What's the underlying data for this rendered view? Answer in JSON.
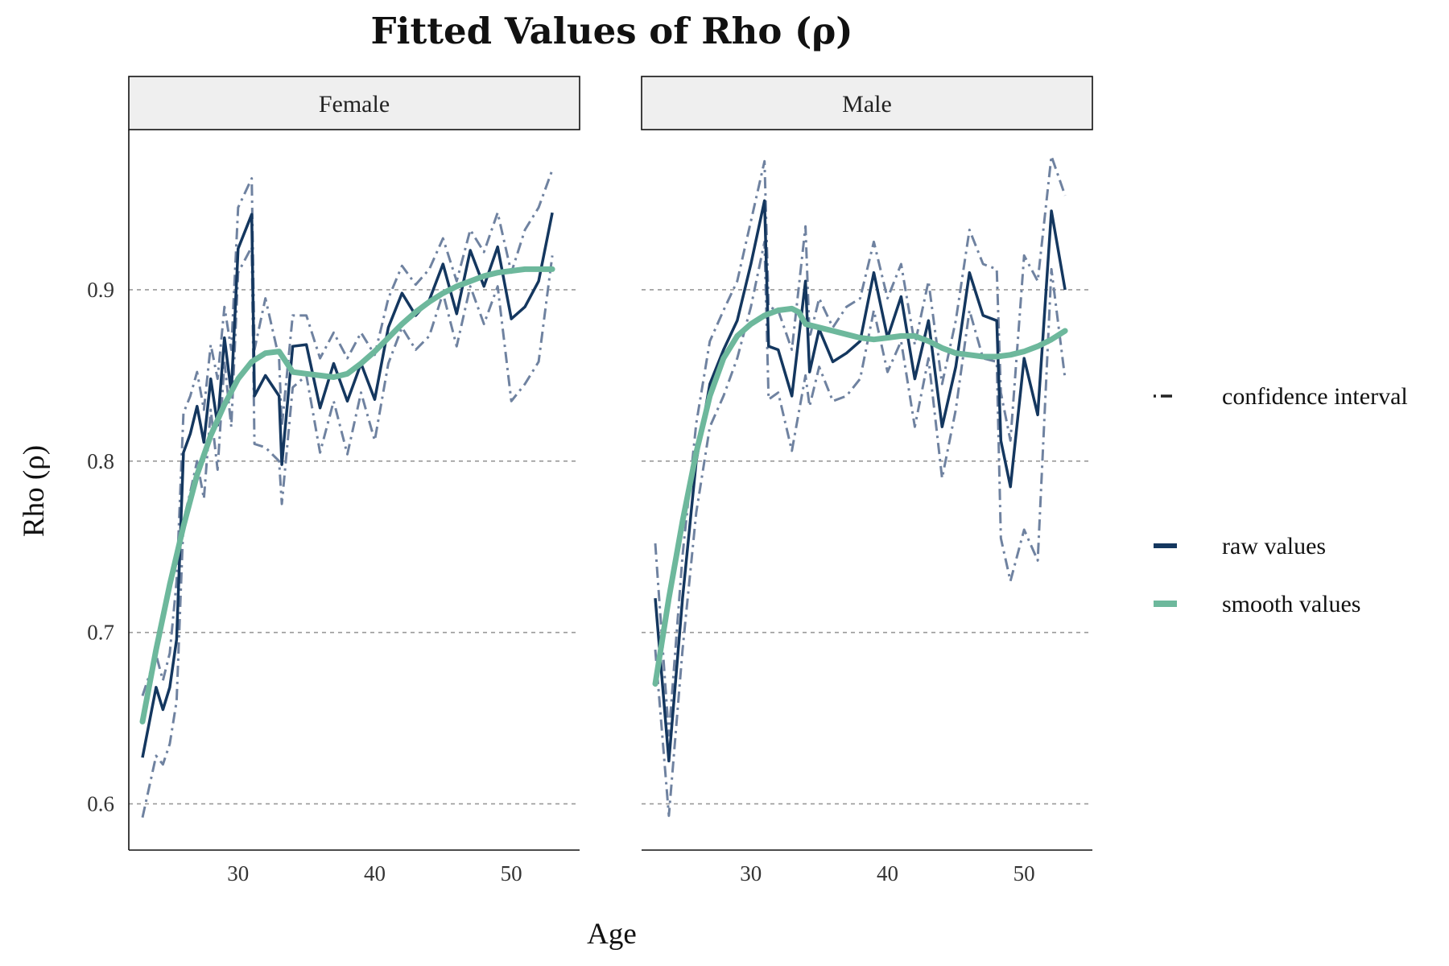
{
  "chart_data": {
    "type": "line",
    "title": "Fitted Values of Rho (ρ)",
    "xlabel": "Age",
    "ylabel": "Rho (ρ)",
    "xlim": [
      22,
      55
    ],
    "ylim": [
      0.573,
      0.993
    ],
    "x_ticks": [
      30,
      40,
      50
    ],
    "y_ticks": [
      0.6,
      0.7,
      0.8,
      0.9
    ],
    "y_tick_labels": [
      "0.6",
      "0.7",
      "0.8",
      "0.9"
    ],
    "grid": "horizontal dashed",
    "legend_position": "right",
    "legend": [
      {
        "key": "ci",
        "label": "confidence interval",
        "style": "dashed"
      },
      {
        "key": "raw",
        "label": "raw values",
        "style": "solid"
      },
      {
        "key": "smooth",
        "label": "smooth values",
        "style": "solid"
      }
    ],
    "colors": {
      "raw": "#14375f",
      "ci": "#6f82a0",
      "smooth": "#6db89c",
      "grid": "#9a9a9a",
      "strip_bg": "#efefef"
    },
    "panels": [
      {
        "label": "Female",
        "x": [
          23,
          24,
          24.5,
          25,
          25.5,
          26,
          26.5,
          27,
          27.5,
          28,
          28.5,
          29,
          29.5,
          30,
          31,
          31.2,
          32,
          33,
          33.2,
          34,
          35,
          36,
          37,
          38,
          39,
          40,
          41,
          42,
          43,
          44,
          45,
          46,
          47,
          48,
          49,
          50,
          51,
          52,
          53
        ],
        "raw": [
          0.627,
          0.668,
          0.655,
          0.668,
          0.696,
          0.805,
          0.816,
          0.832,
          0.811,
          0.848,
          0.821,
          0.872,
          0.84,
          0.924,
          0.944,
          0.838,
          0.85,
          0.838,
          0.798,
          0.867,
          0.868,
          0.831,
          0.857,
          0.835,
          0.857,
          0.836,
          0.878,
          0.898,
          0.885,
          0.894,
          0.915,
          0.886,
          0.923,
          0.902,
          0.925,
          0.883,
          0.89,
          0.905,
          0.945
        ],
        "ci_upper": [
          0.663,
          0.687,
          0.672,
          0.688,
          0.73,
          0.828,
          0.838,
          0.852,
          0.83,
          0.868,
          0.848,
          0.89,
          0.865,
          0.948,
          0.965,
          0.865,
          0.895,
          0.86,
          0.82,
          0.885,
          0.885,
          0.86,
          0.875,
          0.86,
          0.875,
          0.862,
          0.895,
          0.914,
          0.903,
          0.912,
          0.93,
          0.905,
          0.935,
          0.922,
          0.945,
          0.91,
          0.935,
          0.948,
          0.97
        ],
        "ci_lower": [
          0.592,
          0.628,
          0.623,
          0.635,
          0.66,
          0.765,
          0.782,
          0.8,
          0.778,
          0.83,
          0.795,
          0.858,
          0.82,
          0.91,
          0.925,
          0.81,
          0.808,
          0.8,
          0.775,
          0.843,
          0.85,
          0.805,
          0.835,
          0.804,
          0.84,
          0.812,
          0.857,
          0.878,
          0.865,
          0.873,
          0.898,
          0.867,
          0.902,
          0.88,
          0.902,
          0.835,
          0.845,
          0.858,
          0.92
        ],
        "smooth_x": [
          23,
          24,
          25,
          26,
          27,
          28,
          29,
          30,
          31,
          32,
          33,
          34,
          35,
          36,
          37,
          38,
          39,
          40,
          41,
          42,
          43,
          44,
          45,
          46,
          47,
          48,
          49,
          50,
          51,
          52,
          53
        ],
        "smooth": [
          0.648,
          0.69,
          0.728,
          0.762,
          0.792,
          0.815,
          0.833,
          0.848,
          0.858,
          0.863,
          0.864,
          0.852,
          0.851,
          0.85,
          0.849,
          0.851,
          0.857,
          0.864,
          0.872,
          0.88,
          0.887,
          0.893,
          0.898,
          0.902,
          0.905,
          0.908,
          0.91,
          0.911,
          0.912,
          0.912,
          0.912
        ]
      },
      {
        "label": "Male",
        "x": [
          23,
          24,
          25,
          26,
          27,
          28,
          29,
          30,
          31,
          31.3,
          32,
          33,
          34,
          34.3,
          35,
          36,
          37,
          38,
          39,
          40,
          41,
          42,
          43,
          44,
          45,
          46,
          47,
          48,
          48.3,
          49,
          50,
          51,
          52,
          53
        ],
        "raw": [
          0.72,
          0.625,
          0.72,
          0.8,
          0.845,
          0.865,
          0.882,
          0.915,
          0.952,
          0.867,
          0.865,
          0.838,
          0.905,
          0.852,
          0.877,
          0.858,
          0.863,
          0.87,
          0.91,
          0.872,
          0.896,
          0.848,
          0.882,
          0.82,
          0.855,
          0.91,
          0.885,
          0.882,
          0.812,
          0.785,
          0.86,
          0.827,
          0.946,
          0.9
        ],
        "ci_upper": [
          0.752,
          0.64,
          0.745,
          0.822,
          0.87,
          0.888,
          0.905,
          0.94,
          0.975,
          0.89,
          0.888,
          0.865,
          0.937,
          0.872,
          0.895,
          0.878,
          0.89,
          0.895,
          0.928,
          0.895,
          0.915,
          0.868,
          0.905,
          0.845,
          0.882,
          0.935,
          0.915,
          0.912,
          0.84,
          0.812,
          0.92,
          0.905,
          0.978,
          0.955
        ],
        "ci_lower": [
          0.69,
          0.593,
          0.69,
          0.77,
          0.82,
          0.838,
          0.86,
          0.89,
          0.928,
          0.836,
          0.84,
          0.806,
          0.85,
          0.832,
          0.855,
          0.835,
          0.838,
          0.848,
          0.888,
          0.852,
          0.87,
          0.82,
          0.86,
          0.79,
          0.83,
          0.888,
          0.86,
          0.858,
          0.755,
          0.73,
          0.76,
          0.742,
          0.912,
          0.848
        ],
        "smooth_x": [
          23,
          24,
          25,
          26,
          27,
          28,
          29,
          30,
          31,
          32,
          33,
          33.5,
          34,
          35,
          36,
          37,
          38,
          39,
          40,
          41,
          42,
          43,
          44,
          45,
          46,
          47,
          48,
          49,
          50,
          51,
          52,
          53
        ],
        "smooth": [
          0.67,
          0.72,
          0.765,
          0.805,
          0.838,
          0.86,
          0.873,
          0.88,
          0.885,
          0.888,
          0.889,
          0.887,
          0.88,
          0.878,
          0.876,
          0.874,
          0.872,
          0.871,
          0.872,
          0.873,
          0.873,
          0.87,
          0.866,
          0.863,
          0.862,
          0.861,
          0.861,
          0.862,
          0.864,
          0.867,
          0.871,
          0.876
        ]
      }
    ]
  }
}
